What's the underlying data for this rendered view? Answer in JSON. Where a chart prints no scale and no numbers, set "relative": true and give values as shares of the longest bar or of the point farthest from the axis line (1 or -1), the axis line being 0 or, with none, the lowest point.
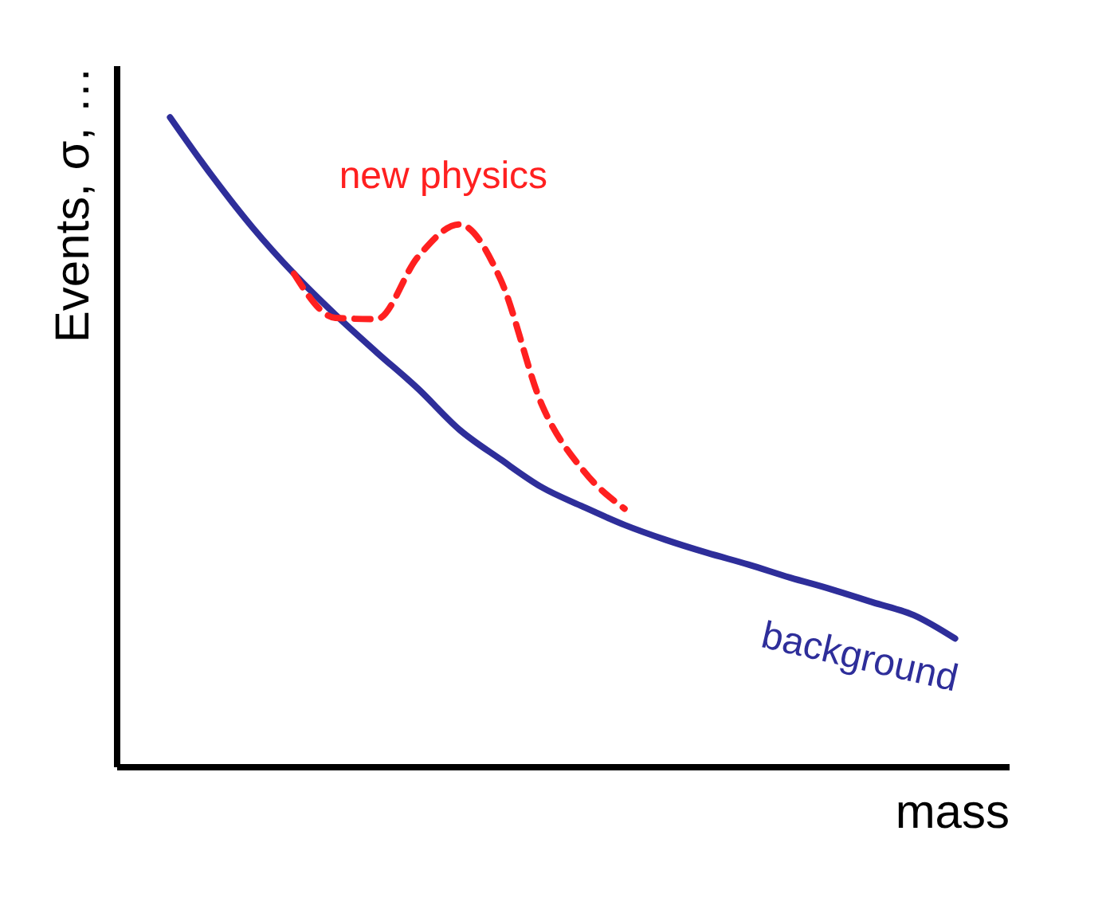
{
  "chart_data": {
    "type": "line",
    "relative": true,
    "xlabel": "mass",
    "ylabel": "Events, σ, …",
    "tick_labels": false,
    "categories": [
      null,
      null,
      null,
      null,
      null,
      null,
      null,
      null,
      null,
      null,
      null,
      null,
      null,
      null,
      null,
      null,
      null,
      null,
      null,
      null,
      null,
      null
    ],
    "series": [
      {
        "name": "background",
        "color": "#2e2e9a",
        "line_style": "solid",
        "values": [
          null,
          1.0,
          0.911,
          0.83,
          0.759,
          0.696,
          0.638,
          0.582,
          0.519,
          0.473,
          0.43,
          0.4,
          0.372,
          0.349,
          0.329,
          0.311,
          0.291,
          0.273,
          0.253,
          0.233,
          0.197,
          null
        ]
      },
      {
        "name": "new physics",
        "color": "#ff2020",
        "line_style": "dashed",
        "values": [
          null,
          null,
          null,
          null,
          0.759,
          0.691,
          0.689,
          0.785,
          0.835,
          0.75,
          0.557,
          0.456,
          0.397,
          null,
          null,
          null,
          null,
          null,
          null,
          null,
          null,
          null
        ]
      }
    ]
  }
}
